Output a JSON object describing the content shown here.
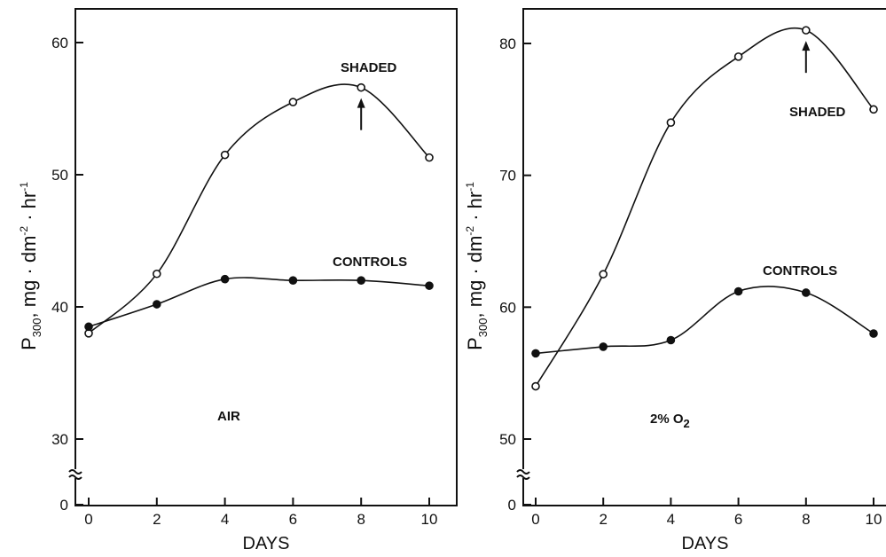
{
  "chart_data": [
    {
      "type": "line",
      "xlabel": "DAYS",
      "ylabel": {
        "main": "P",
        "sub": "300",
        "mid": ", mg · dm",
        "sup1": "-2",
        "mid2": " · hr",
        "sup2": "-1"
      },
      "x_ticks": [
        "0",
        "2",
        "4",
        "6",
        "8",
        "10"
      ],
      "y_ticks": [
        "0",
        "30",
        "40",
        "50",
        "60"
      ],
      "x": [
        0,
        2,
        4,
        6,
        8,
        10
      ],
      "ylim": [
        30,
        62
      ],
      "axis_break": true,
      "condition_label": "AIR",
      "series": [
        {
          "name": "SHADED",
          "marker": "open",
          "values": [
            38.0,
            42.5,
            51.5,
            55.5,
            56.6,
            51.3
          ]
        },
        {
          "name": "CONTROLS",
          "marker": "filled",
          "values": [
            38.5,
            40.2,
            42.1,
            42.0,
            42.0,
            41.6
          ]
        }
      ],
      "annotations": [
        {
          "type": "arrow",
          "x": 8,
          "target": "SHADED"
        }
      ]
    },
    {
      "type": "line",
      "xlabel": "DAYS",
      "ylabel": {
        "main": "P",
        "sub": "300",
        "mid": ", mg · dm",
        "sup1": "-2",
        "mid2": " · hr",
        "sup2": "-1"
      },
      "x_ticks": [
        "0",
        "2",
        "4",
        "6",
        "8",
        "10"
      ],
      "y_ticks": [
        "0",
        "50",
        "60",
        "70",
        "80"
      ],
      "x": [
        0,
        2,
        4,
        6,
        8,
        10
      ],
      "ylim": [
        50,
        82
      ],
      "axis_break": true,
      "condition_label": {
        "main": "2% O",
        "sub": "2"
      },
      "series": [
        {
          "name": "SHADED",
          "marker": "open",
          "values": [
            54.0,
            62.5,
            74.0,
            79.0,
            81.0,
            75.0
          ]
        },
        {
          "name": "CONTROLS",
          "marker": "filled",
          "values": [
            56.5,
            57.0,
            57.5,
            61.2,
            61.1,
            58.0
          ]
        }
      ],
      "annotations": [
        {
          "type": "arrow",
          "x": 8,
          "target": "SHADED"
        }
      ]
    }
  ]
}
